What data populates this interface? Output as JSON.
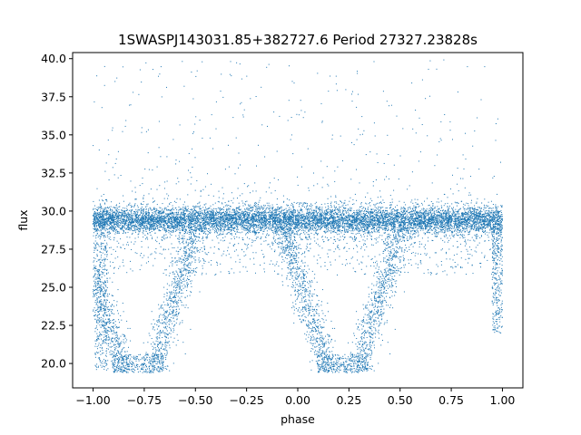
{
  "chart_data": {
    "type": "scatter",
    "title": "1SWASPJ143031.85+382727.6 Period 27327.23828s",
    "xlabel": "phase",
    "ylabel": "flux",
    "xlim": [
      -1.1,
      1.1
    ],
    "ylim": [
      18.4,
      40.4
    ],
    "xticks": [
      -1.0,
      -0.75,
      -0.5,
      -0.25,
      0.0,
      0.25,
      0.5,
      0.75,
      1.0
    ],
    "xtick_labels": [
      "−1.00",
      "−0.75",
      "−0.50",
      "−0.25",
      "0.00",
      "0.25",
      "0.50",
      "0.75",
      "1.00"
    ],
    "yticks": [
      20.0,
      22.5,
      25.0,
      27.5,
      30.0,
      32.5,
      35.0,
      37.5,
      40.0
    ],
    "ytick_labels": [
      "20.0",
      "22.5",
      "25.0",
      "27.5",
      "30.0",
      "32.5",
      "35.0",
      "37.5",
      "40.0"
    ],
    "grid": false,
    "legend": "none",
    "point_color": "#1f77b4",
    "series": [
      {
        "description_points": [
          {
            "x": -1.0,
            "y": 29.4
          },
          {
            "x": -0.75,
            "y": 29.4
          },
          {
            "x": -0.5,
            "y": 29.4
          },
          {
            "x": -0.25,
            "y": 29.4
          },
          {
            "x": 0.0,
            "y": 29.4
          },
          {
            "x": 0.25,
            "y": 29.4
          },
          {
            "x": 0.5,
            "y": 29.4
          },
          {
            "x": 0.75,
            "y": 29.4
          },
          {
            "x": 1.0,
            "y": 29.4
          },
          {
            "x": -0.95,
            "y": 20.0
          },
          {
            "x": -0.8,
            "y": 20.0
          },
          {
            "x": -0.6,
            "y": 25.0
          },
          {
            "x": 0.05,
            "y": 20.0
          },
          {
            "x": 0.2,
            "y": 20.0
          },
          {
            "x": 0.4,
            "y": 25.0
          },
          {
            "x": -0.1,
            "y": 35.5
          },
          {
            "x": 0.6,
            "y": 36.0
          },
          {
            "x": 0.95,
            "y": 35.5
          }
        ]
      }
    ]
  }
}
